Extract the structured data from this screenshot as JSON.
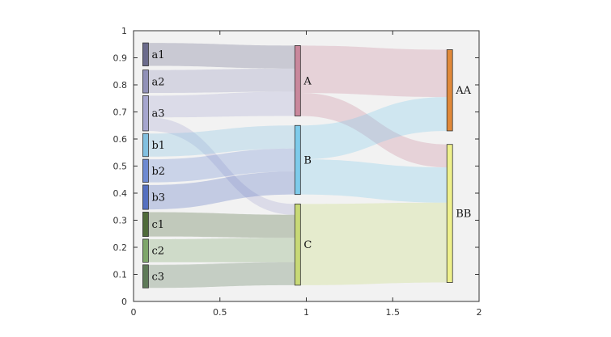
{
  "chart_data": {
    "type": "sankey",
    "title": "",
    "xlabel": "",
    "ylabel": "",
    "xlim": [
      0,
      2
    ],
    "ylim": [
      0,
      1
    ],
    "xticks": [
      0,
      0.5,
      1,
      1.5,
      2
    ],
    "xtick_labels": [
      "0",
      "0.5",
      "1",
      "1.5",
      "2"
    ],
    "yticks": [
      0,
      0.1,
      0.2,
      0.3,
      0.4,
      0.5,
      0.6,
      0.7,
      0.8,
      0.9,
      1
    ],
    "ytick_labels": [
      "0",
      "0.1",
      "0.2",
      "0.3",
      "0.4",
      "0.5",
      "0.6",
      "0.7",
      "0.8",
      "0.9",
      "1"
    ],
    "columns_x": [
      0.07,
      0.95,
      1.83
    ],
    "colors": {
      "axes_background": "#f2f2f2",
      "axis": "#333333",
      "a1": "#6b6b8c",
      "a2": "#9191b8",
      "a3": "#a6a6cf",
      "b1": "#82c0e0",
      "b2": "#6e8ad2",
      "b3": "#5570c0",
      "c1": "#4f6b3a",
      "c2": "#7ea66a",
      "c3": "#5e7a58",
      "A": "#c9889c",
      "B": "#7ecbea",
      "C": "#c8d977",
      "AA": "#e0893a",
      "BB": "#eef08c"
    },
    "nodes": [
      {
        "name": "a1",
        "label": "a1",
        "column": 0,
        "y_bottom": 0.87,
        "y_top": 0.955
      },
      {
        "name": "a2",
        "label": "a2",
        "column": 0,
        "y_bottom": 0.77,
        "y_top": 0.855
      },
      {
        "name": "a3",
        "label": "a3",
        "column": 0,
        "y_bottom": 0.63,
        "y_top": 0.76
      },
      {
        "name": "b1",
        "label": "b1",
        "column": 0,
        "y_bottom": 0.535,
        "y_top": 0.62
      },
      {
        "name": "b2",
        "label": "b2",
        "column": 0,
        "y_bottom": 0.44,
        "y_top": 0.525
      },
      {
        "name": "b3",
        "label": "b3",
        "column": 0,
        "y_bottom": 0.34,
        "y_top": 0.43
      },
      {
        "name": "c1",
        "label": "c1",
        "column": 0,
        "y_bottom": 0.24,
        "y_top": 0.33
      },
      {
        "name": "c2",
        "label": "c2",
        "column": 0,
        "y_bottom": 0.145,
        "y_top": 0.23
      },
      {
        "name": "c3",
        "label": "c3",
        "column": 0,
        "y_bottom": 0.05,
        "y_top": 0.135
      },
      {
        "name": "A",
        "label": "A",
        "column": 1,
        "y_bottom": 0.685,
        "y_top": 0.945
      },
      {
        "name": "B",
        "label": "B",
        "column": 1,
        "y_bottom": 0.395,
        "y_top": 0.65
      },
      {
        "name": "C",
        "label": "C",
        "column": 1,
        "y_bottom": 0.06,
        "y_top": 0.36
      },
      {
        "name": "AA",
        "label": "AA",
        "column": 2,
        "y_bottom": 0.63,
        "y_top": 0.93
      },
      {
        "name": "BB",
        "label": "BB",
        "column": 2,
        "y_bottom": 0.07,
        "y_top": 0.58
      }
    ],
    "links": [
      {
        "source": "a1",
        "target": "A",
        "src_bottom": 0.87,
        "src_top": 0.955,
        "dst_bottom": 0.86,
        "dst_top": 0.945
      },
      {
        "source": "a2",
        "target": "A",
        "src_bottom": 0.77,
        "src_top": 0.855,
        "dst_bottom": 0.775,
        "dst_top": 0.86
      },
      {
        "source": "a3",
        "target": "A",
        "src_bottom": 0.68,
        "src_top": 0.76,
        "dst_bottom": 0.685,
        "dst_top": 0.775
      },
      {
        "source": "a3",
        "target": "C",
        "src_bottom": 0.63,
        "src_top": 0.68,
        "dst_bottom": 0.32,
        "dst_top": 0.36
      },
      {
        "source": "b1",
        "target": "B",
        "src_bottom": 0.535,
        "src_top": 0.62,
        "dst_bottom": 0.565,
        "dst_top": 0.65
      },
      {
        "source": "b2",
        "target": "B",
        "src_bottom": 0.44,
        "src_top": 0.525,
        "dst_bottom": 0.48,
        "dst_top": 0.565
      },
      {
        "source": "b3",
        "target": "B",
        "src_bottom": 0.34,
        "src_top": 0.43,
        "dst_bottom": 0.395,
        "dst_top": 0.48
      },
      {
        "source": "c1",
        "target": "C",
        "src_bottom": 0.24,
        "src_top": 0.33,
        "dst_bottom": 0.235,
        "dst_top": 0.32
      },
      {
        "source": "c2",
        "target": "C",
        "src_bottom": 0.145,
        "src_top": 0.23,
        "dst_bottom": 0.145,
        "dst_top": 0.235
      },
      {
        "source": "c3",
        "target": "C",
        "src_bottom": 0.05,
        "src_top": 0.135,
        "dst_bottom": 0.06,
        "dst_top": 0.145
      },
      {
        "source": "A",
        "target": "AA",
        "src_bottom": 0.77,
        "src_top": 0.945,
        "dst_bottom": 0.755,
        "dst_top": 0.93
      },
      {
        "source": "A",
        "target": "BB",
        "src_bottom": 0.685,
        "src_top": 0.77,
        "dst_bottom": 0.495,
        "dst_top": 0.58
      },
      {
        "source": "B",
        "target": "AA",
        "src_bottom": 0.525,
        "src_top": 0.65,
        "dst_bottom": 0.63,
        "dst_top": 0.755
      },
      {
        "source": "B",
        "target": "BB",
        "src_bottom": 0.395,
        "src_top": 0.525,
        "dst_bottom": 0.365,
        "dst_top": 0.495
      },
      {
        "source": "C",
        "target": "BB",
        "src_bottom": 0.06,
        "src_top": 0.36,
        "dst_bottom": 0.07,
        "dst_top": 0.365
      }
    ]
  }
}
